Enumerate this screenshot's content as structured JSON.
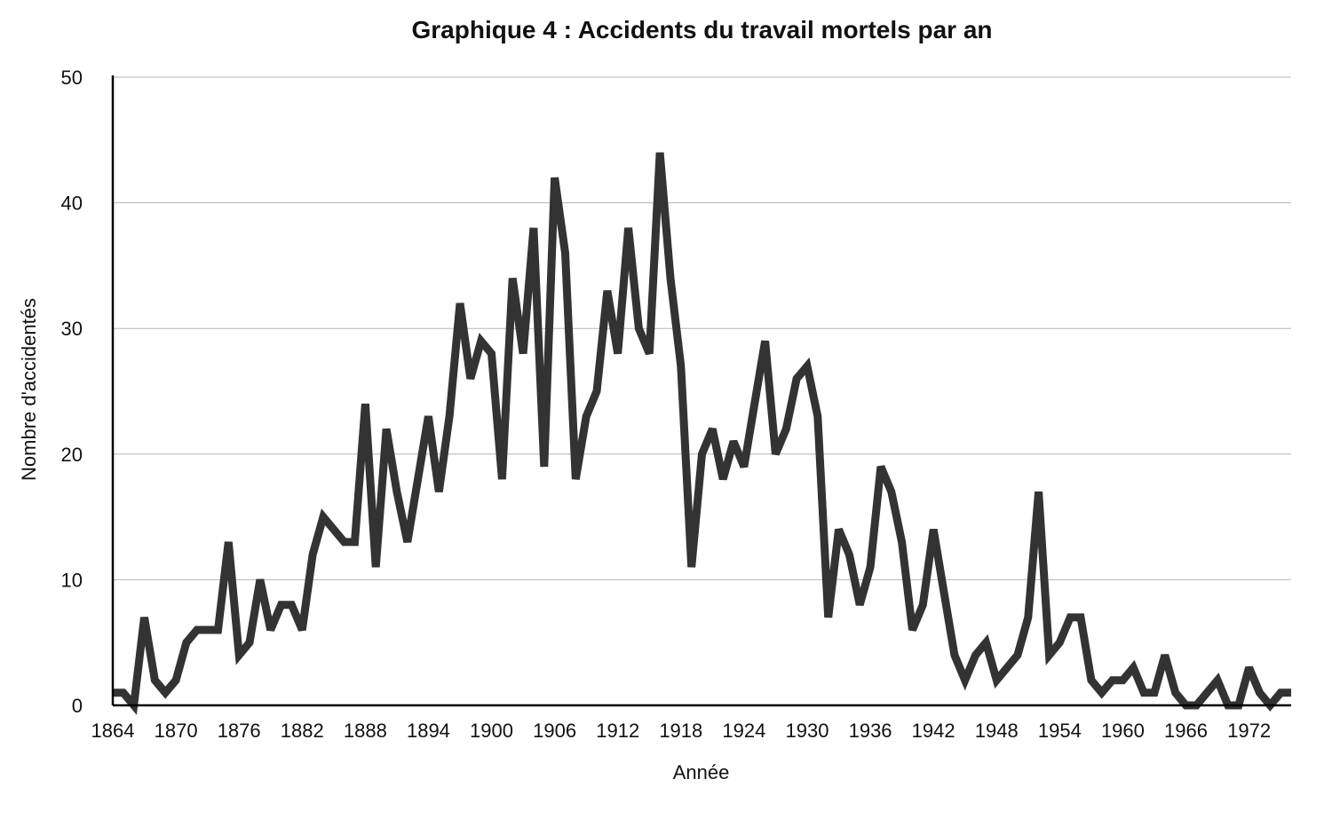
{
  "chart_data": {
    "type": "line",
    "title": "Graphique 4 : Accidents du travail mortels par an",
    "xlabel": "Année",
    "ylabel": "Nombre d'accidentés",
    "xlim": [
      1864,
      1976
    ],
    "ylim": [
      0,
      50
    ],
    "yticks": [
      0,
      10,
      20,
      30,
      40,
      50
    ],
    "xticks": [
      1864,
      1870,
      1876,
      1882,
      1888,
      1894,
      1900,
      1906,
      1912,
      1918,
      1924,
      1930,
      1936,
      1942,
      1948,
      1954,
      1960,
      1966,
      1972
    ],
    "grid": "horizontal",
    "line_color": "#333333",
    "series": [
      {
        "x": [
          1864,
          1865,
          1866,
          1867,
          1868,
          1869,
          1870,
          1871,
          1872,
          1873,
          1874,
          1875,
          1876,
          1877,
          1878,
          1879,
          1880,
          1881,
          1882,
          1883,
          1884,
          1885,
          1886,
          1887,
          1888,
          1889,
          1890,
          1891,
          1892,
          1893,
          1894,
          1895,
          1896,
          1897,
          1898,
          1899,
          1900,
          1901,
          1902,
          1903,
          1904,
          1905,
          1906,
          1907,
          1908,
          1909,
          1910,
          1911,
          1912,
          1913,
          1914,
          1915,
          1916,
          1917,
          1918,
          1919,
          1920,
          1921,
          1922,
          1923,
          1924,
          1925,
          1926,
          1927,
          1928,
          1929,
          1930,
          1931,
          1932,
          1933,
          1934,
          1935,
          1936,
          1937,
          1938,
          1939,
          1940,
          1941,
          1942,
          1943,
          1944,
          1945,
          1946,
          1947,
          1948,
          1949,
          1950,
          1951,
          1952,
          1953,
          1954,
          1955,
          1956,
          1957,
          1958,
          1959,
          1960,
          1961,
          1962,
          1963,
          1964,
          1965,
          1966,
          1967,
          1968,
          1969,
          1970,
          1971,
          1972,
          1973,
          1974,
          1975,
          1976
        ],
        "values": [
          1,
          1,
          0,
          7,
          2,
          1,
          2,
          5,
          6,
          6,
          6,
          13,
          4,
          5,
          10,
          6,
          8,
          8,
          6,
          12,
          15,
          14,
          13,
          13,
          24,
          11,
          22,
          17,
          13,
          18,
          23,
          17,
          23,
          32,
          26,
          29,
          28,
          18,
          34,
          28,
          38,
          19,
          42,
          36,
          18,
          23,
          25,
          33,
          28,
          38,
          30,
          28,
          44,
          34,
          27,
          11,
          20,
          22,
          18,
          21,
          19,
          24,
          29,
          20,
          22,
          26,
          27,
          23,
          7,
          14,
          12,
          8,
          11,
          19,
          17,
          13,
          6,
          8,
          14,
          9,
          4,
          2,
          4,
          5,
          2,
          3,
          4,
          7,
          17,
          4,
          5,
          7,
          7,
          2,
          1,
          2,
          2,
          3,
          1,
          1,
          4,
          1,
          0,
          0,
          1,
          2,
          0,
          0,
          3,
          1,
          0,
          1,
          1
        ]
      }
    ]
  }
}
